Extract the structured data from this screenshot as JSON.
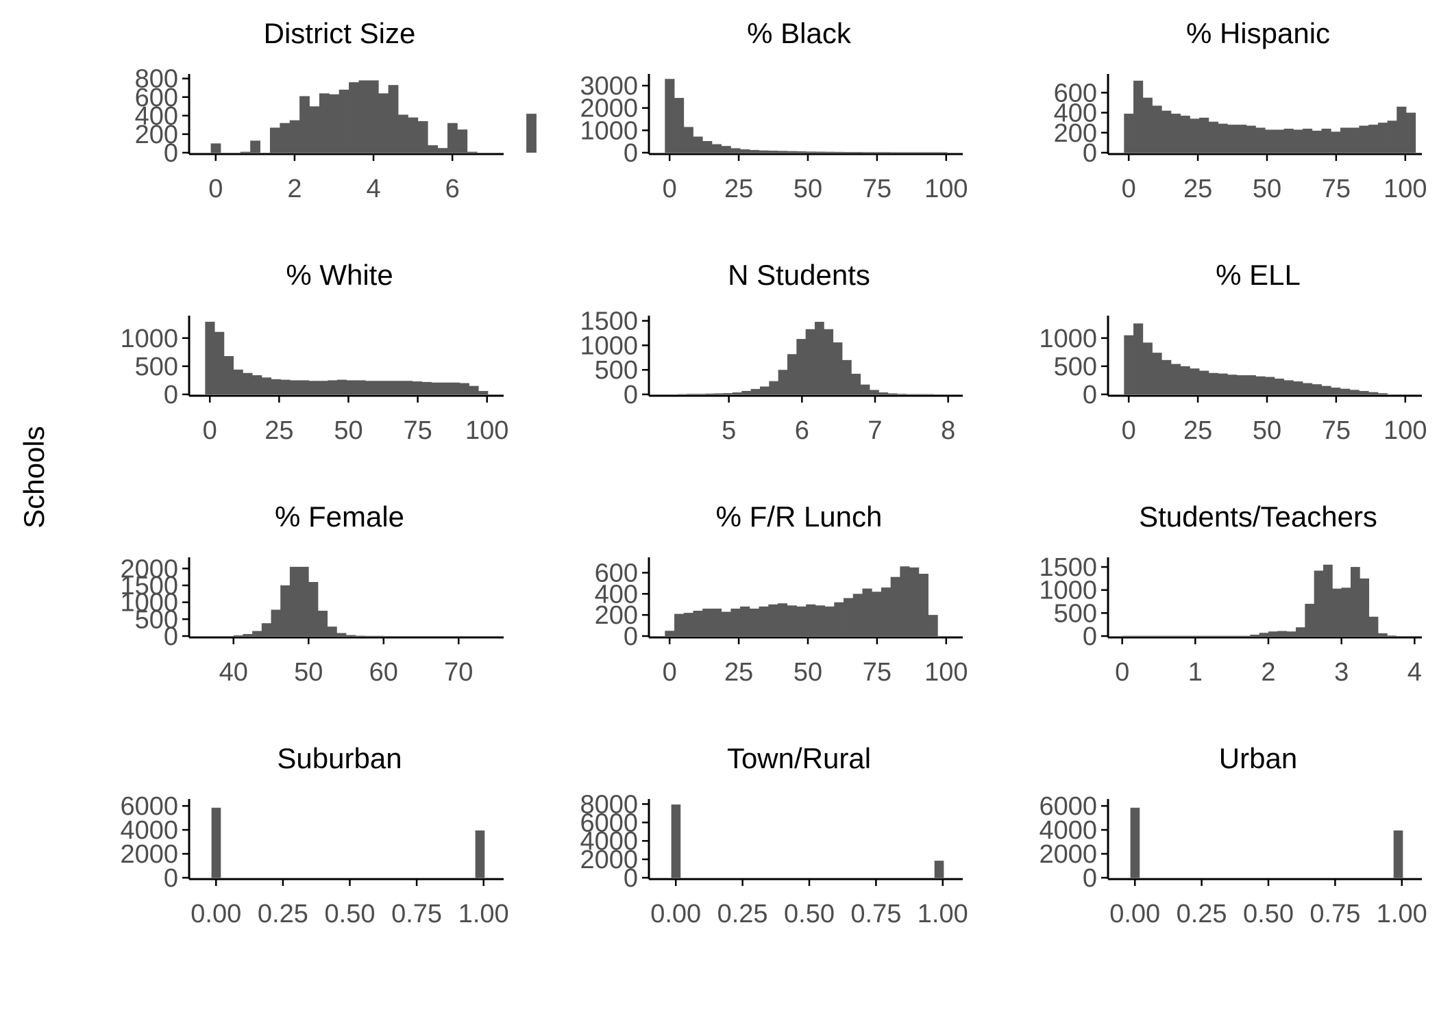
{
  "ylabel": "Schools",
  "bar_color": "#595959",
  "chart_data": [
    {
      "type": "bar",
      "title": "District Size",
      "xlim": [
        -0.5,
        7.3
      ],
      "ylim": [
        0,
        820
      ],
      "xticks": [
        0,
        2,
        4,
        6
      ],
      "yticks": [
        0,
        200,
        400,
        600,
        800
      ],
      "bin_start": -0.125,
      "bin_width": 0.25,
      "values": [
        100,
        0,
        0,
        10,
        130,
        0,
        270,
        320,
        350,
        610,
        500,
        640,
        630,
        680,
        760,
        780,
        780,
        640,
        730,
        410,
        380,
        340,
        80,
        50,
        320,
        250,
        10,
        0,
        0,
        0,
        0,
        0,
        420
      ]
    },
    {
      "type": "bar",
      "title": "% Black",
      "xlim": [
        -5,
        106
      ],
      "ylim": [
        0,
        3400
      ],
      "xticks": [
        0,
        25,
        50,
        75,
        100
      ],
      "yticks": [
        0,
        1000,
        2000,
        3000
      ],
      "bin_start": -1.7,
      "bin_width": 3.4,
      "values": [
        3300,
        2450,
        1150,
        720,
        520,
        380,
        300,
        200,
        150,
        120,
        100,
        90,
        80,
        70,
        60,
        50,
        45,
        40,
        35,
        30,
        30,
        25,
        25,
        25,
        20,
        20,
        20,
        20,
        20,
        20
      ]
    },
    {
      "type": "bar",
      "title": "% Hispanic",
      "xlim": [
        -5,
        106
      ],
      "ylim": [
        0,
        760
      ],
      "xticks": [
        0,
        25,
        50,
        75,
        100
      ],
      "yticks": [
        0,
        200,
        400,
        600
      ],
      "bin_start": -1.7,
      "bin_width": 3.4,
      "values": [
        390,
        720,
        550,
        470,
        420,
        390,
        370,
        340,
        350,
        310,
        290,
        280,
        280,
        270,
        250,
        230,
        230,
        240,
        230,
        240,
        220,
        240,
        210,
        250,
        250,
        270,
        280,
        300,
        320,
        460,
        400
      ]
    },
    {
      "type": "bar",
      "title": "% White",
      "xlim": [
        -5,
        106
      ],
      "ylim": [
        0,
        1350
      ],
      "xticks": [
        0,
        25,
        50,
        75,
        100
      ],
      "yticks": [
        0,
        500,
        1000
      ],
      "bin_start": -1.7,
      "bin_width": 3.4,
      "values": [
        1290,
        1110,
        680,
        440,
        380,
        340,
        300,
        270,
        260,
        250,
        250,
        240,
        240,
        250,
        260,
        250,
        250,
        240,
        240,
        240,
        240,
        240,
        230,
        220,
        210,
        210,
        210,
        200,
        150,
        60
      ]
    },
    {
      "type": "bar",
      "title": "N Students",
      "xlim": [
        4.0,
        8.2
      ],
      "ylim": [
        0,
        1550
      ],
      "xticks": [
        5,
        6,
        7,
        8
      ],
      "yticks": [
        0,
        500,
        1000,
        1500
      ],
      "bin_start": 4.3,
      "bin_width": 0.125,
      "values": [
        5,
        10,
        10,
        15,
        20,
        25,
        40,
        70,
        110,
        160,
        270,
        500,
        820,
        1130,
        1330,
        1480,
        1330,
        1060,
        700,
        420,
        200,
        90,
        40,
        20,
        10,
        5,
        5,
        5
      ]
    },
    {
      "type": "bar",
      "title": "% ELL",
      "xlim": [
        -5,
        106
      ],
      "ylim": [
        0,
        1350
      ],
      "xticks": [
        0,
        25,
        50,
        75,
        100
      ],
      "yticks": [
        0,
        500,
        1000
      ],
      "bin_start": -1.7,
      "bin_width": 3.4,
      "values": [
        1050,
        1260,
        920,
        740,
        610,
        540,
        500,
        460,
        420,
        380,
        370,
        350,
        340,
        340,
        320,
        310,
        280,
        250,
        230,
        200,
        180,
        150,
        120,
        100,
        80,
        60,
        40,
        20
      ]
    },
    {
      "type": "bar",
      "title": "% Female",
      "xlim": [
        35,
        76
      ],
      "ylim": [
        0,
        2250
      ],
      "xticks": [
        40,
        50,
        60,
        70
      ],
      "yticks": [
        0,
        500,
        1000,
        1500,
        2000
      ],
      "bin_start": 40,
      "bin_width": 1.25,
      "values": [
        20,
        60,
        150,
        380,
        780,
        1500,
        2050,
        2050,
        1600,
        750,
        280,
        90,
        30,
        10,
        5,
        5
      ]
    },
    {
      "type": "bar",
      "title": "% F/R Lunch",
      "xlim": [
        -5,
        106
      ],
      "ylim": [
        0,
        720
      ],
      "xticks": [
        0,
        25,
        50,
        75,
        100
      ],
      "yticks": [
        0,
        200,
        400,
        600
      ],
      "bin_start": -1.7,
      "bin_width": 3.4,
      "values": [
        50,
        210,
        220,
        240,
        260,
        260,
        230,
        260,
        280,
        260,
        280,
        300,
        310,
        290,
        280,
        300,
        290,
        280,
        320,
        360,
        400,
        450,
        420,
        460,
        560,
        660,
        650,
        590,
        200
      ]
    },
    {
      "type": "bar",
      "title": "Students/Teachers",
      "xlim": [
        -0.1,
        4.1
      ],
      "ylim": [
        0,
        1650
      ],
      "xticks": [
        0,
        1,
        2,
        3,
        4
      ],
      "yticks": [
        0,
        500,
        1000,
        1500
      ],
      "bin_start": 0,
      "bin_width": 0.125,
      "values": [
        5,
        5,
        5,
        5,
        5,
        5,
        5,
        5,
        5,
        5,
        5,
        5,
        5,
        5,
        30,
        70,
        100,
        110,
        100,
        190,
        700,
        1420,
        1550,
        1030,
        1050,
        1500,
        1250,
        420,
        60,
        10
      ]
    },
    {
      "type": "bar",
      "title": "Suburban",
      "xlim": [
        -0.075,
        1.075
      ],
      "ylim": [
        0,
        6350
      ],
      "xticks": [
        0,
        0.25,
        0.5,
        0.75,
        1
      ],
      "xtick_labels": [
        "0.00",
        "0.25",
        "0.50",
        "0.75",
        "1.00"
      ],
      "yticks": [
        0,
        2000,
        4000,
        6000
      ],
      "bin_start": -0.017,
      "bin_width": 0.034,
      "values": [
        5850,
        0,
        0,
        0,
        0,
        0,
        0,
        0,
        0,
        0,
        0,
        0,
        0,
        0,
        0,
        0,
        0,
        0,
        0,
        0,
        0,
        0,
        0,
        0,
        0,
        0,
        0,
        0,
        0,
        3950
      ]
    },
    {
      "type": "bar",
      "title": "Town/Rural",
      "xlim": [
        -0.075,
        1.075
      ],
      "ylim": [
        0,
        8250
      ],
      "xticks": [
        0,
        0.25,
        0.5,
        0.75,
        1
      ],
      "xtick_labels": [
        "0.00",
        "0.25",
        "0.50",
        "0.75",
        "1.00"
      ],
      "yticks": [
        0,
        2000,
        4000,
        6000,
        8000
      ],
      "bin_start": -0.017,
      "bin_width": 0.034,
      "values": [
        7950,
        0,
        0,
        0,
        0,
        0,
        0,
        0,
        0,
        0,
        0,
        0,
        0,
        0,
        0,
        0,
        0,
        0,
        0,
        0,
        0,
        0,
        0,
        0,
        0,
        0,
        0,
        0,
        0,
        1850
      ]
    },
    {
      "type": "bar",
      "title": "Urban",
      "xlim": [
        -0.075,
        1.075
      ],
      "ylim": [
        0,
        6350
      ],
      "xticks": [
        0,
        0.25,
        0.5,
        0.75,
        1
      ],
      "xtick_labels": [
        "0.00",
        "0.25",
        "0.50",
        "0.75",
        "1.00"
      ],
      "yticks": [
        0,
        2000,
        4000,
        6000
      ],
      "bin_start": -0.017,
      "bin_width": 0.034,
      "values": [
        5850,
        0,
        0,
        0,
        0,
        0,
        0,
        0,
        0,
        0,
        0,
        0,
        0,
        0,
        0,
        0,
        0,
        0,
        0,
        0,
        0,
        0,
        0,
        0,
        0,
        0,
        0,
        0,
        0,
        3950
      ]
    }
  ]
}
